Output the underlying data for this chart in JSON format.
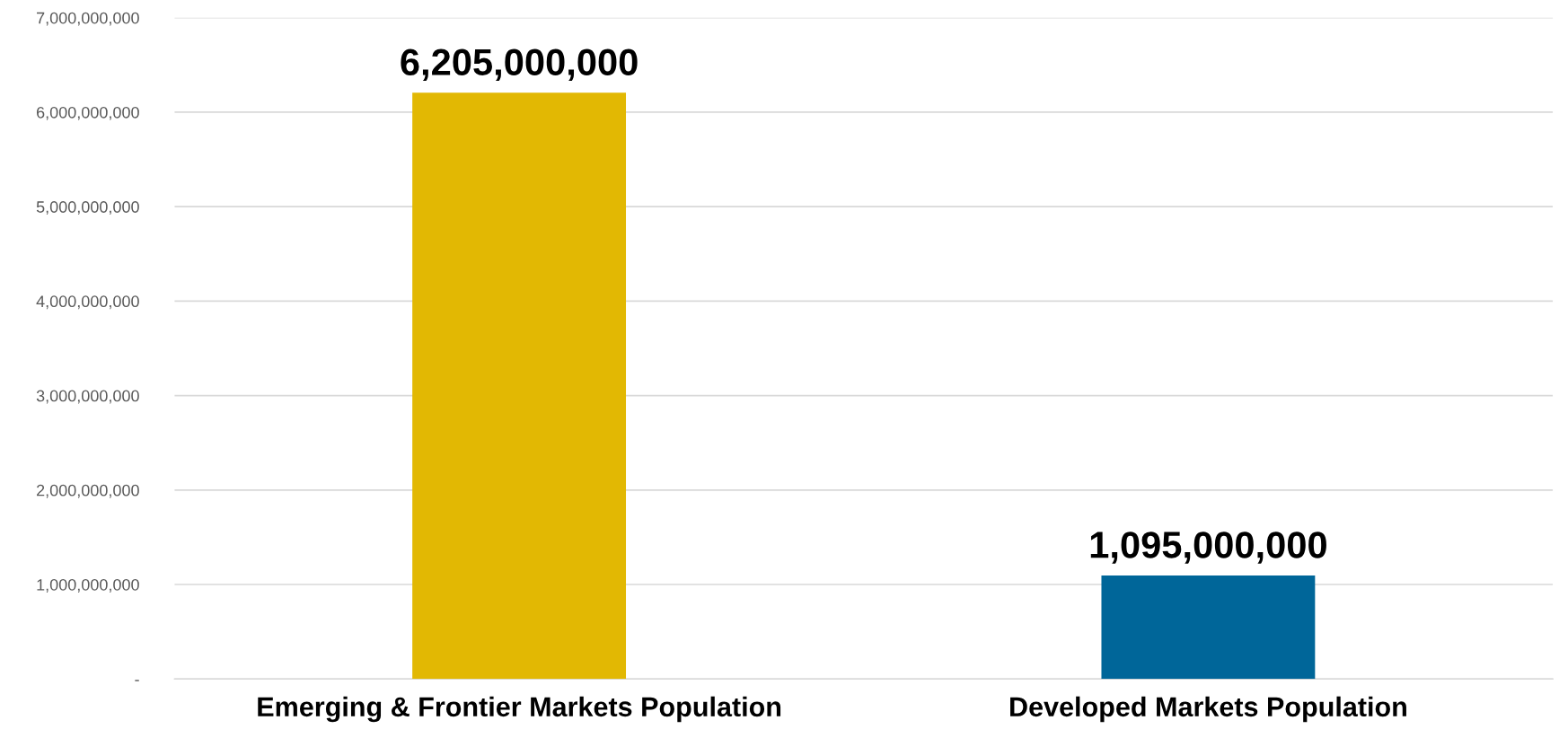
{
  "chart_data": {
    "type": "bar",
    "categories": [
      "Emerging & Frontier Markets Population",
      "Developed Markets Population"
    ],
    "values": [
      6205000000,
      1095000000
    ],
    "colors": [
      "#e2b803",
      "#006699"
    ],
    "ylim": [
      0,
      7000000000
    ],
    "yticks": [
      {
        "value": 0,
        "label": "-"
      },
      {
        "value": 1000000000,
        "label": "1,000,000,000"
      },
      {
        "value": 2000000000,
        "label": "2,000,000,000"
      },
      {
        "value": 3000000000,
        "label": "3,000,000,000"
      },
      {
        "value": 4000000000,
        "label": "4,000,000,000"
      },
      {
        "value": 5000000000,
        "label": "5,000,000,000"
      },
      {
        "value": 6000000000,
        "label": "6,000,000,000"
      },
      {
        "value": 7000000000,
        "label": "7,000,000,000"
      }
    ],
    "grid": "y",
    "value_labels": [
      "6,205,000,000",
      "1,095,000,000"
    ]
  }
}
